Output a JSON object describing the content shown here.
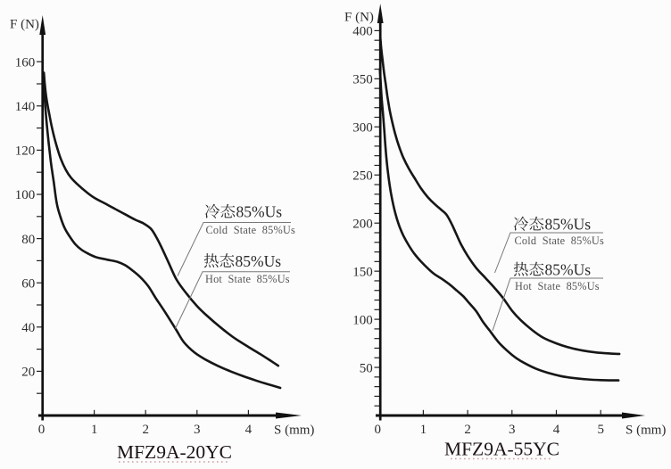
{
  "page": {
    "background": "#fcfcfc",
    "ink": "#1a1a1a"
  },
  "chart_data": [
    {
      "type": "line",
      "caption": "MFZ9A-20YC",
      "ylabel": "F (N)",
      "xlabel": "S (mm)",
      "xlim": [
        0,
        4.8
      ],
      "ylim": [
        0,
        175
      ],
      "x_ticks": [
        1,
        2,
        3,
        4
      ],
      "x_tick_labels": [
        "0",
        "1",
        "2",
        "3",
        "4"
      ],
      "y_ticks": [
        20,
        40,
        60,
        80,
        100,
        120,
        140,
        160
      ],
      "y_tick_labels": [
        "20",
        "40",
        "60",
        "80",
        "100",
        "120",
        "140",
        "160"
      ],
      "y_minor_tick_step": 10,
      "y_minor_tick_max": 160,
      "grid": false,
      "legend": "leader-line annotations",
      "series": [
        {
          "name": "冷态85%Us",
          "name_cjk": "冷态",
          "name_suffix": "85%Us",
          "name_en": "Cold State 85%Us",
          "points": [
            [
              0.02,
              155
            ],
            [
              0.05,
              147
            ],
            [
              0.08,
              142
            ],
            [
              0.12,
              137
            ],
            [
              0.17,
              131
            ],
            [
              0.22,
              126
            ],
            [
              0.28,
              121
            ],
            [
              0.35,
              116
            ],
            [
              0.45,
              111
            ],
            [
              0.55,
              107.5
            ],
            [
              0.7,
              104
            ],
            [
              0.85,
              101
            ],
            [
              1.0,
              98.5
            ],
            [
              1.2,
              96
            ],
            [
              1.4,
              93.5
            ],
            [
              1.6,
              91
            ],
            [
              1.8,
              88.5
            ],
            [
              1.95,
              87
            ],
            [
              2.1,
              84.5
            ],
            [
              2.2,
              81
            ],
            [
              2.3,
              76.5
            ],
            [
              2.45,
              69
            ],
            [
              2.6,
              61.5
            ],
            [
              2.8,
              55
            ],
            [
              3.0,
              49.5
            ],
            [
              3.2,
              45
            ],
            [
              3.45,
              40
            ],
            [
              3.7,
              35.5
            ],
            [
              4.0,
              31
            ],
            [
              4.25,
              27.5
            ],
            [
              4.45,
              24.5
            ],
            [
              4.58,
              22.5
            ]
          ]
        },
        {
          "name": "热态85%Us",
          "name_cjk": "热态",
          "name_suffix": "85%Us",
          "name_en": "Hot State 85%Us",
          "points": [
            [
              0.015,
              152
            ],
            [
              0.03,
              146
            ],
            [
              0.05,
              139
            ],
            [
              0.08,
              131
            ],
            [
              0.12,
              122
            ],
            [
              0.16,
              114
            ],
            [
              0.21,
              106
            ],
            [
              0.27,
              96
            ],
            [
              0.34,
              90
            ],
            [
              0.42,
              85
            ],
            [
              0.52,
              81
            ],
            [
              0.63,
              77.5
            ],
            [
              0.75,
              75
            ],
            [
              0.9,
              73
            ],
            [
              1.05,
              71.5
            ],
            [
              1.25,
              70.5
            ],
            [
              1.45,
              69.5
            ],
            [
              1.6,
              68
            ],
            [
              1.75,
              65.5
            ],
            [
              1.9,
              62.5
            ],
            [
              2.05,
              58.5
            ],
            [
              2.2,
              53
            ],
            [
              2.4,
              46
            ],
            [
              2.6,
              38.5
            ],
            [
              2.75,
              33
            ],
            [
              2.95,
              28.5
            ],
            [
              3.15,
              25.5
            ],
            [
              3.4,
              22.5
            ],
            [
              3.65,
              20
            ],
            [
              3.9,
              17.8
            ],
            [
              4.15,
              15.8
            ],
            [
              4.4,
              14
            ],
            [
              4.62,
              12.5
            ]
          ]
        }
      ]
    },
    {
      "type": "line",
      "caption": "MFZ9A-55YC",
      "ylabel": "F (N)",
      "xlabel": "S (mm)",
      "xlim": [
        0,
        5.7
      ],
      "ylim": [
        0,
        430
      ],
      "x_ticks": [
        1,
        2,
        3,
        4,
        5
      ],
      "x_tick_labels": [
        "0",
        "1",
        "2",
        "3",
        "4",
        "5"
      ],
      "y_ticks": [
        50,
        100,
        150,
        200,
        250,
        300,
        350,
        400
      ],
      "y_tick_labels": [
        "50",
        "100",
        "150",
        "200",
        "250",
        "300",
        "350",
        "400"
      ],
      "y_minor_tick_step": 10,
      "y_minor_tick_max": 400,
      "grid": false,
      "legend": "leader-line annotations",
      "series": [
        {
          "name": "冷态85%Us",
          "name_cjk": "冷态",
          "name_suffix": "85%Us",
          "name_en": "Cold State 85%Us",
          "points": [
            [
              0.03,
              393
            ],
            [
              0.05,
              382
            ],
            [
              0.08,
              370
            ],
            [
              0.11,
              358
            ],
            [
              0.15,
              345
            ],
            [
              0.19,
              332
            ],
            [
              0.24,
              318
            ],
            [
              0.3,
              305
            ],
            [
              0.37,
              292
            ],
            [
              0.45,
              280
            ],
            [
              0.55,
              268
            ],
            [
              0.67,
              257
            ],
            [
              0.8,
              247
            ],
            [
              0.95,
              236
            ],
            [
              1.1,
              227
            ],
            [
              1.25,
              220
            ],
            [
              1.4,
              214
            ],
            [
              1.52,
              209
            ],
            [
              1.63,
              200
            ],
            [
              1.73,
              190
            ],
            [
              1.85,
              178
            ],
            [
              2.0,
              166
            ],
            [
              2.2,
              153
            ],
            [
              2.4,
              143
            ],
            [
              2.6,
              133
            ],
            [
              2.8,
              122
            ],
            [
              3.0,
              109
            ],
            [
              3.2,
              99
            ],
            [
              3.45,
              89
            ],
            [
              3.7,
              81
            ],
            [
              4.0,
              75
            ],
            [
              4.3,
              70.5
            ],
            [
              4.6,
              67.5
            ],
            [
              4.9,
              65.5
            ],
            [
              5.2,
              64.5
            ],
            [
              5.42,
              64
            ]
          ]
        },
        {
          "name": "热态85%Us",
          "name_cjk": "热态",
          "name_suffix": "85%Us",
          "name_en": "Hot State 85%Us",
          "points": [
            [
              0.02,
              360
            ],
            [
              0.04,
              345
            ],
            [
              0.06,
              330
            ],
            [
              0.09,
              314
            ],
            [
              0.12,
              296
            ],
            [
              0.15,
              277
            ],
            [
              0.19,
              258
            ],
            [
              0.24,
              240
            ],
            [
              0.3,
              224
            ],
            [
              0.37,
              210
            ],
            [
              0.45,
              198
            ],
            [
              0.55,
              187
            ],
            [
              0.67,
              177
            ],
            [
              0.8,
              168
            ],
            [
              0.95,
              160
            ],
            [
              1.1,
              153
            ],
            [
              1.25,
              147
            ],
            [
              1.42,
              142
            ],
            [
              1.6,
              136
            ],
            [
              1.75,
              130
            ],
            [
              1.9,
              124
            ],
            [
              2.05,
              116
            ],
            [
              2.2,
              108
            ],
            [
              2.35,
              97
            ],
            [
              2.5,
              88
            ],
            [
              2.7,
              76
            ],
            [
              2.9,
              67
            ],
            [
              3.1,
              59.5
            ],
            [
              3.3,
              54
            ],
            [
              3.55,
              48.5
            ],
            [
              3.8,
              44.5
            ],
            [
              4.1,
              41
            ],
            [
              4.4,
              38.8
            ],
            [
              4.7,
              37.5
            ],
            [
              5.0,
              36.8
            ],
            [
              5.4,
              36.5
            ]
          ]
        }
      ]
    }
  ]
}
